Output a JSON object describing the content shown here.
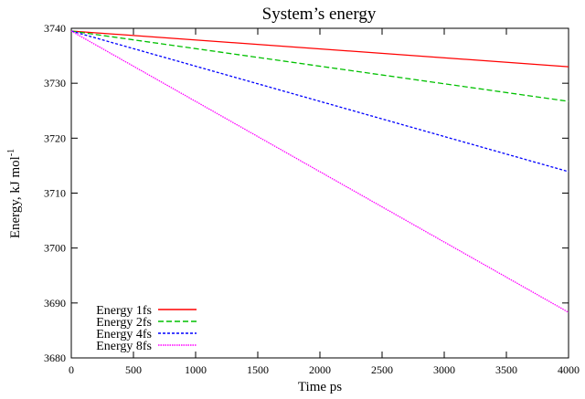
{
  "chart_data": {
    "type": "line",
    "title": "System’s energy",
    "xlabel": "Time ps",
    "ylabel": "Energy, kJ mol",
    "ylabel_superscript": "-1",
    "xlim": [
      0,
      4000
    ],
    "ylim": [
      3680,
      3740
    ],
    "x_ticks": [
      0,
      500,
      1000,
      1500,
      2000,
      2500,
      3000,
      3500,
      4000
    ],
    "y_ticks": [
      3680,
      3690,
      3700,
      3710,
      3720,
      3730,
      3740
    ],
    "grid": false,
    "legend_position": "bottom-left",
    "series": [
      {
        "name": "Energy 1fs",
        "color": "#ff0000",
        "dash": "solid",
        "x": [
          0,
          4000
        ],
        "y": [
          3739.5,
          3733.0
        ]
      },
      {
        "name": "Energy 2fs",
        "color": "#00c000",
        "dash": "dashed",
        "x": [
          0,
          4000
        ],
        "y": [
          3739.5,
          3726.7
        ]
      },
      {
        "name": "Energy 4fs",
        "color": "#0000ff",
        "dash": "dotted",
        "x": [
          0,
          4000
        ],
        "y": [
          3739.5,
          3713.9
        ]
      },
      {
        "name": "Energy 8fs",
        "color": "#ff00ff",
        "dash": "dense",
        "x": [
          0,
          4000
        ],
        "y": [
          3739.5,
          3688.3
        ]
      }
    ]
  }
}
